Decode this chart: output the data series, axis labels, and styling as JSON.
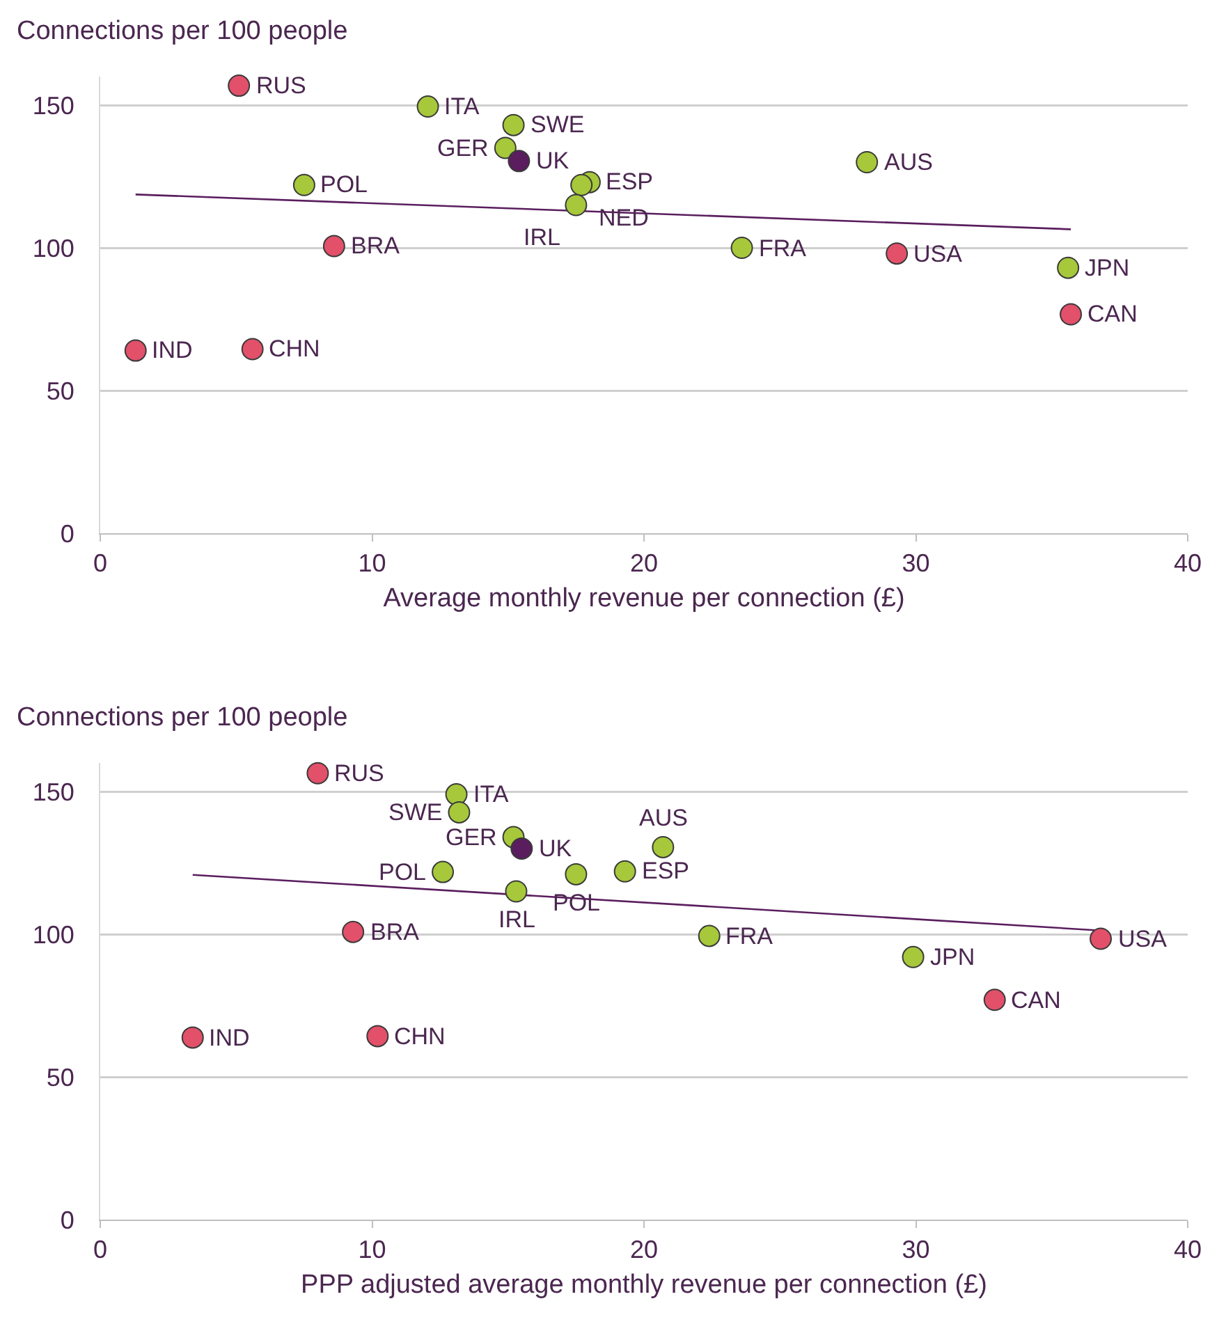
{
  "chart_data": [
    {
      "type": "scatter",
      "ylabel": "Connections per 100 people",
      "xlabel": "Average monthly revenue per connection (£)",
      "xlim": [
        0,
        40
      ],
      "ylim": [
        0,
        160
      ],
      "xticks": [
        0,
        10,
        20,
        30,
        40
      ],
      "yticks": [
        0,
        50,
        100,
        150
      ],
      "grid": "y",
      "legend": false,
      "marker": "circle",
      "series": [
        {
          "color": "#e2506a",
          "x": [
            5.1,
            8.6,
            29.3,
            35.7,
            1.3,
            5.6
          ],
          "values": [
            156.8,
            100.6,
            98,
            76.7,
            64,
            64.5
          ]
        },
        {
          "color": "#a6c83a",
          "x": [
            12.05,
            15.2,
            14.9,
            7.5,
            18.0,
            17.7,
            17.5,
            28.2,
            23.6,
            35.6
          ],
          "values": [
            149.5,
            143,
            135,
            122,
            123,
            122,
            115,
            130,
            100,
            93
          ]
        },
        {
          "color": "#5a1e5e",
          "x": [
            15.4
          ],
          "values": [
            130.4
          ]
        },
        {
          "type": "line",
          "color": "#5a1e5e",
          "x": [
            1.3,
            35.7
          ],
          "values": [
            118.7,
            106.5
          ],
          "marker": "none"
        }
      ],
      "annotations": [
        {
          "text": "RUS",
          "x": 5.1,
          "y": 156.8
        },
        {
          "text": "ITA",
          "x": 12.05,
          "y": 149.5
        },
        {
          "text": "SWE",
          "x": 15.2,
          "y": 143
        },
        {
          "text": "GER",
          "x": 14.9,
          "y": 135
        },
        {
          "text": "UK",
          "x": 15.4,
          "y": 130.4
        },
        {
          "text": "POL",
          "x": 7.5,
          "y": 122
        },
        {
          "text": "ESP",
          "x": 18.0,
          "y": 123
        },
        {
          "text": "NED",
          "x": 17.7,
          "y": 122
        },
        {
          "text": "IRL",
          "x": 17.5,
          "y": 115
        },
        {
          "text": "AUS",
          "x": 28.2,
          "y": 130
        },
        {
          "text": "BRA",
          "x": 8.6,
          "y": 100.6
        },
        {
          "text": "FRA",
          "x": 23.6,
          "y": 100
        },
        {
          "text": "USA",
          "x": 29.3,
          "y": 98
        },
        {
          "text": "JPN",
          "x": 35.6,
          "y": 93
        },
        {
          "text": "CAN",
          "x": 35.7,
          "y": 76.7
        },
        {
          "text": "IND",
          "x": 1.3,
          "y": 64
        },
        {
          "text": "CHN",
          "x": 5.6,
          "y": 64.5
        }
      ]
    },
    {
      "type": "scatter",
      "ylabel": "Connections per 100 people",
      "xlabel": "PPP adjusted average monthly revenue per connection (£)",
      "xlim": [
        0,
        40
      ],
      "ylim": [
        0,
        160
      ],
      "xticks": [
        0,
        10,
        20,
        30,
        40
      ],
      "yticks": [
        0,
        50,
        100,
        150
      ],
      "grid": "y",
      "legend": false,
      "marker": "circle",
      "series": [
        {
          "color": "#e2506a",
          "x": [
            8.0,
            9.3,
            36.8,
            32.9,
            3.4,
            10.2
          ],
          "values": [
            156.4,
            100.8,
            98.4,
            77,
            63.8,
            64.3
          ]
        },
        {
          "color": "#a6c83a",
          "x": [
            13.1,
            13.2,
            15.2,
            12.6,
            17.5,
            15.3,
            19.3,
            20.7,
            22.4,
            29.9
          ],
          "values": [
            149,
            142.7,
            134,
            121.8,
            121,
            115,
            122,
            130.5,
            99.4,
            92
          ]
        },
        {
          "color": "#5a1e5e",
          "x": [
            15.5
          ],
          "values": [
            130
          ]
        },
        {
          "type": "line",
          "color": "#5a1e5e",
          "x": [
            3.4,
            36.8
          ],
          "values": [
            120.8,
            101.3
          ],
          "marker": "none"
        }
      ],
      "annotations": [
        {
          "text": "RUS",
          "x": 8.0,
          "y": 156.4
        },
        {
          "text": "ITA",
          "x": 13.1,
          "y": 149
        },
        {
          "text": "SWE",
          "x": 13.2,
          "y": 142.7
        },
        {
          "text": "GER",
          "x": 15.2,
          "y": 134
        },
        {
          "text": "UK",
          "x": 15.5,
          "y": 130
        },
        {
          "text": "POL",
          "x": 12.6,
          "y": 121.8
        },
        {
          "text": "POL",
          "x": 17.5,
          "y": 121
        },
        {
          "text": "IRL",
          "x": 15.3,
          "y": 115
        },
        {
          "text": "ESP",
          "x": 19.3,
          "y": 122
        },
        {
          "text": "AUS",
          "x": 20.7,
          "y": 130.5
        },
        {
          "text": "BRA",
          "x": 9.3,
          "y": 100.8
        },
        {
          "text": "FRA",
          "x": 22.4,
          "y": 99.4
        },
        {
          "text": "JPN",
          "x": 29.9,
          "y": 92
        },
        {
          "text": "USA",
          "x": 36.8,
          "y": 98.4
        },
        {
          "text": "CAN",
          "x": 32.9,
          "y": 77
        },
        {
          "text": "IND",
          "x": 3.4,
          "y": 63.8
        },
        {
          "text": "CHN",
          "x": 10.2,
          "y": 64.3
        }
      ]
    }
  ]
}
